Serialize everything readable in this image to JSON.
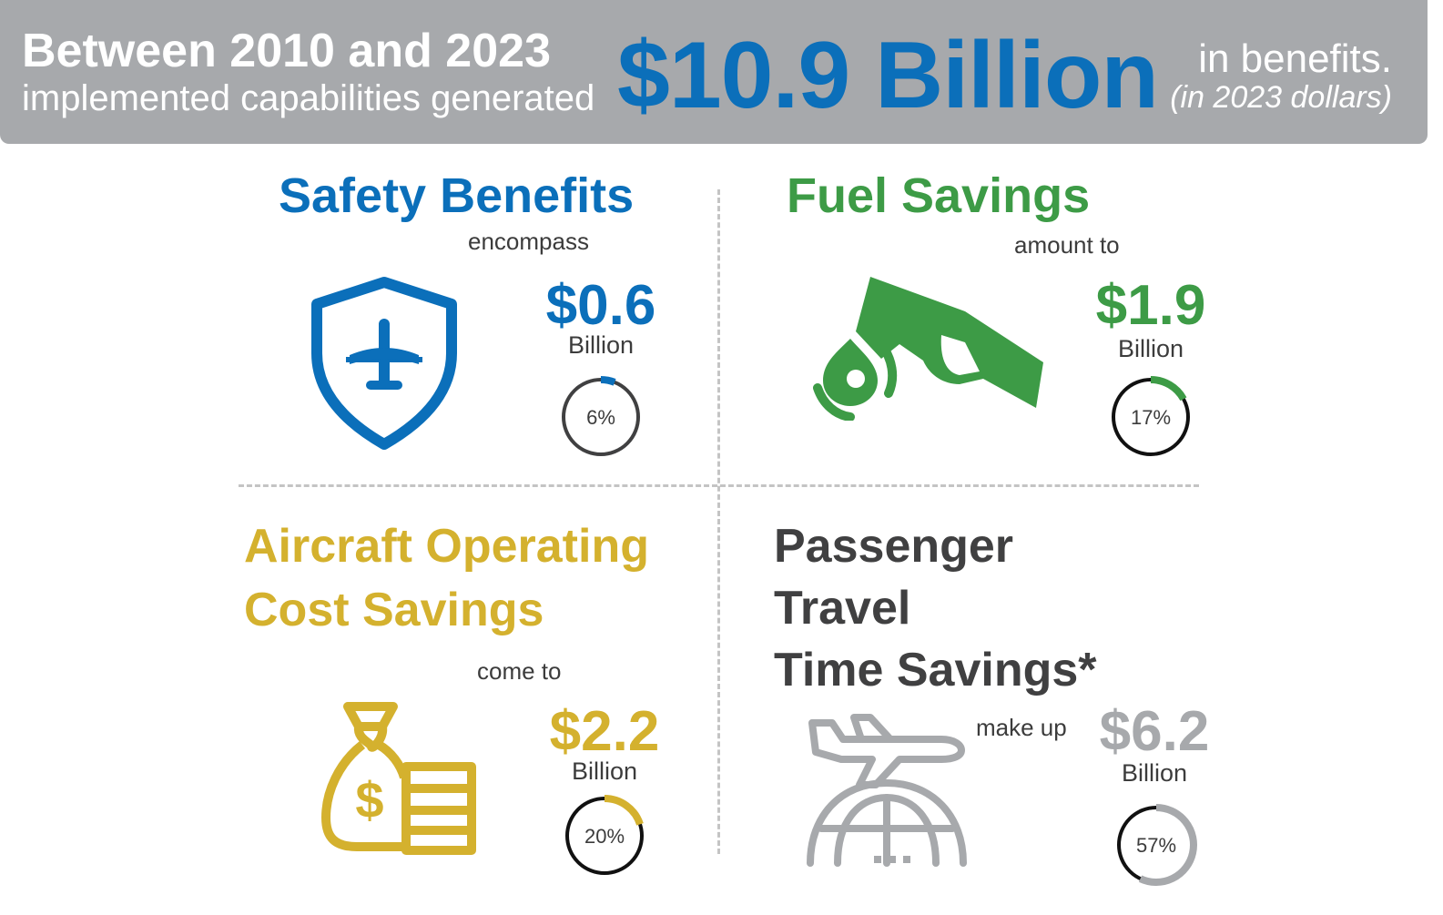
{
  "banner": {
    "line1": "Between 2010 and 2023",
    "line2": "implemented capabilities generated",
    "total": "$10.9 Billion",
    "right_line1": "in benefits.",
    "right_line2": "(in 2023 dollars)"
  },
  "colors": {
    "banner_bg": "#a7a9ac",
    "blue": "#0b6fba",
    "green": "#3d9b46",
    "gold": "#d4b12e",
    "dark": "#404041",
    "gray": "#a7a9ac"
  },
  "panels": [
    {
      "id": "safety",
      "title": "Safety Benefits",
      "verb": "encompass",
      "amount": "$0.6",
      "unit": "Billion",
      "percent_label": "6%",
      "percent": 6,
      "icon": "shield-airplane-icon"
    },
    {
      "id": "fuel",
      "title": "Fuel Savings",
      "verb": "amount to",
      "amount": "$1.9",
      "unit": "Billion",
      "percent_label": "17%",
      "percent": 17,
      "icon": "fuel-nozzle-icon"
    },
    {
      "id": "aircraft",
      "title_line1": "Aircraft Operating",
      "title_line2": "Cost Savings",
      "verb": "come to",
      "amount": "$2.2",
      "unit": "Billion",
      "percent_label": "20%",
      "percent": 20,
      "icon": "money-bag-icon"
    },
    {
      "id": "passenger",
      "title_line1": "Passenger",
      "title_line2": "Travel",
      "title_line3": "Time Savings*",
      "verb": "make up",
      "amount": "$6.2",
      "unit": "Billion",
      "percent_label": "57%",
      "percent": 57,
      "icon": "airplane-globe-icon"
    }
  ]
}
